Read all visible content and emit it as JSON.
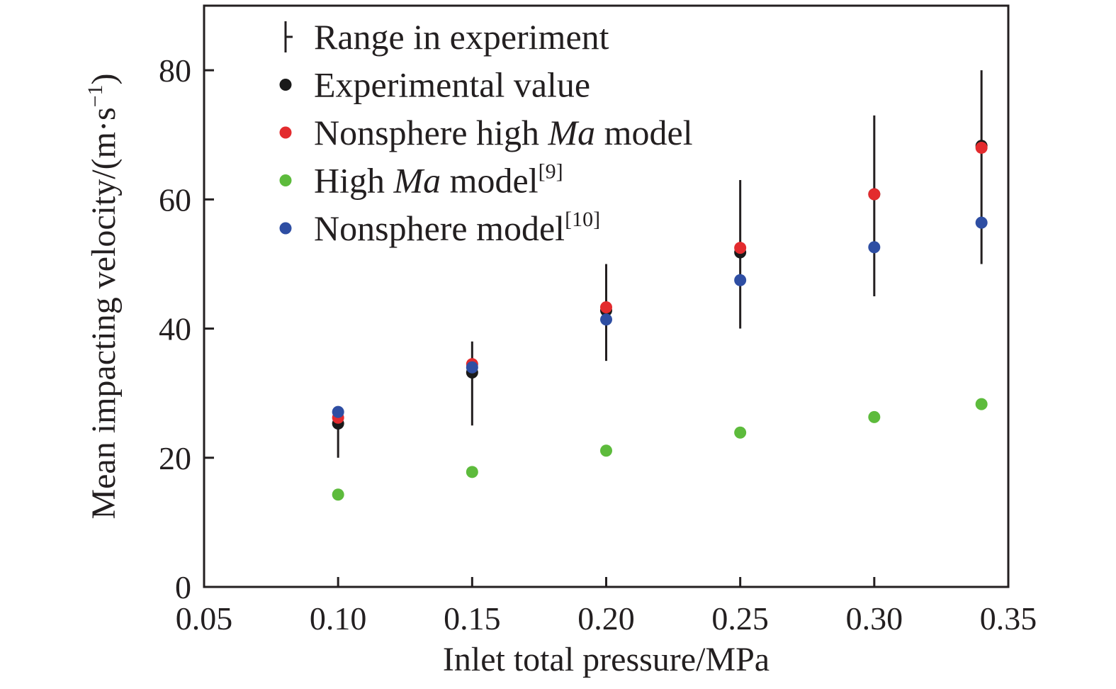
{
  "chart_data": {
    "type": "scatter",
    "title": "",
    "xlabel": "Inlet total pressure/MPa",
    "ylabel": {
      "prefix": "Mean impacting velocity/(m·s",
      "sup": "−1",
      "suffix": ")"
    },
    "xlim": [
      0.05,
      0.35
    ],
    "ylim": [
      0,
      90
    ],
    "x_ticks": [
      "0.05",
      "0.10",
      "0.15",
      "0.20",
      "0.25",
      "0.30",
      "0.35"
    ],
    "y_ticks": [
      "0",
      "20",
      "40",
      "60",
      "80"
    ],
    "grid": false,
    "legend_position": "top-left",
    "legend": [
      {
        "key": "range",
        "parts": [
          {
            "text": "Range in experiment"
          }
        ]
      },
      {
        "key": "experimental",
        "parts": [
          {
            "text": "Experimental value"
          }
        ]
      },
      {
        "key": "nonsphere_high_ma",
        "parts": [
          {
            "text": "Nonsphere high "
          },
          {
            "text": "Ma",
            "italic": true
          },
          {
            "text": " model"
          }
        ]
      },
      {
        "key": "high_ma",
        "parts": [
          {
            "text": "High "
          },
          {
            "text": "Ma",
            "italic": true
          },
          {
            "text": " model"
          },
          {
            "text": "[9]",
            "sup": true
          }
        ]
      },
      {
        "key": "nonsphere",
        "parts": [
          {
            "text": "Nonsphere model"
          },
          {
            "text": "[10]",
            "sup": true
          }
        ]
      }
    ],
    "x": [
      0.1,
      0.15,
      0.2,
      0.25,
      0.3,
      0.34
    ],
    "range_in_experiment": [
      [
        20,
        27.5
      ],
      [
        25,
        38
      ],
      [
        35,
        50
      ],
      [
        40,
        63
      ],
      [
        45,
        73
      ],
      [
        50,
        80
      ]
    ],
    "series": [
      {
        "key": "experimental",
        "color": "#1a1a1a",
        "values": [
          25.3,
          33.2,
          42.8,
          51.8,
          60.8,
          68.3
        ]
      },
      {
        "key": "nonsphere_high_ma",
        "color": "#e32b2e",
        "values": [
          26.2,
          34.5,
          43.3,
          52.5,
          60.8,
          68.0
        ]
      },
      {
        "key": "high_ma",
        "color": "#5dbb3c",
        "values": [
          14.3,
          17.8,
          21.1,
          23.9,
          26.3,
          28.3
        ]
      },
      {
        "key": "nonsphere",
        "color": "#2e4ea3",
        "values": [
          27.1,
          34.0,
          41.4,
          47.5,
          52.6,
          56.4
        ]
      }
    ]
  }
}
